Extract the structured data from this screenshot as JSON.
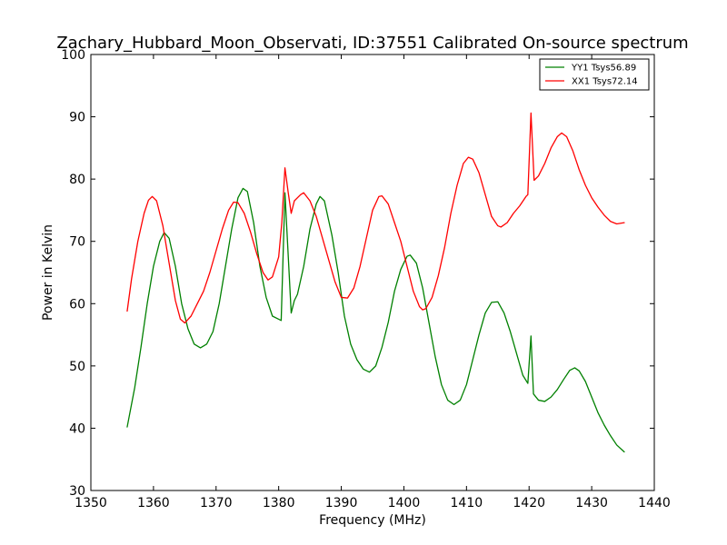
{
  "chart_data": {
    "type": "line",
    "title": "Zachary_Hubbard_Moon_Observati, ID:37551 Calibrated On-source spectrum",
    "xlabel": "Frequency (MHz)",
    "ylabel": "Power in Kelvin",
    "xlim": [
      1350,
      1440
    ],
    "ylim": [
      30,
      100
    ],
    "xticks": [
      1350,
      1360,
      1370,
      1380,
      1390,
      1400,
      1410,
      1420,
      1430,
      1440
    ],
    "yticks": [
      30,
      40,
      50,
      60,
      70,
      80,
      90,
      100
    ],
    "xtick_labels": [
      "1350",
      "1360",
      "1370",
      "1380",
      "1390",
      "1400",
      "1410",
      "1420",
      "1430",
      "1440"
    ],
    "ytick_labels": [
      "30",
      "40",
      "50",
      "60",
      "70",
      "80",
      "90",
      "100"
    ],
    "grid": false,
    "legend_position": "top-right",
    "series": [
      {
        "name": "YY1 Tsys56.89",
        "color": "#008000",
        "points": [
          [
            1355.8,
            40.2
          ],
          [
            1357.0,
            46.5
          ],
          [
            1358.0,
            53.0
          ],
          [
            1359.0,
            60.0
          ],
          [
            1360.0,
            66.0
          ],
          [
            1361.0,
            70.0
          ],
          [
            1361.7,
            71.4
          ],
          [
            1362.5,
            70.5
          ],
          [
            1363.5,
            66.0
          ],
          [
            1364.5,
            60.0
          ],
          [
            1365.5,
            56.0
          ],
          [
            1366.5,
            53.5
          ],
          [
            1367.5,
            52.9
          ],
          [
            1368.5,
            53.5
          ],
          [
            1369.5,
            55.5
          ],
          [
            1370.5,
            60.0
          ],
          [
            1371.5,
            66.0
          ],
          [
            1372.5,
            72.0
          ],
          [
            1373.5,
            77.0
          ],
          [
            1374.3,
            78.5
          ],
          [
            1375.0,
            78.0
          ],
          [
            1376.0,
            73.0
          ],
          [
            1377.0,
            66.0
          ],
          [
            1378.0,
            61.0
          ],
          [
            1379.0,
            58.0
          ],
          [
            1380.0,
            57.5
          ],
          [
            1380.4,
            57.3
          ],
          [
            1381.0,
            77.8
          ],
          [
            1382.0,
            58.5
          ],
          [
            1382.5,
            60.5
          ],
          [
            1383.0,
            61.5
          ],
          [
            1384.0,
            66.0
          ],
          [
            1385.0,
            72.0
          ],
          [
            1386.0,
            76.0
          ],
          [
            1386.6,
            77.2
          ],
          [
            1387.3,
            76.5
          ],
          [
            1388.5,
            71.0
          ],
          [
            1389.5,
            65.0
          ],
          [
            1390.5,
            58.0
          ],
          [
            1391.5,
            53.5
          ],
          [
            1392.5,
            51.0
          ],
          [
            1393.5,
            49.5
          ],
          [
            1394.5,
            49.0
          ],
          [
            1395.5,
            50.0
          ],
          [
            1396.5,
            53.0
          ],
          [
            1397.5,
            57.0
          ],
          [
            1398.5,
            62.0
          ],
          [
            1399.5,
            65.5
          ],
          [
            1400.5,
            67.6
          ],
          [
            1401.0,
            67.8
          ],
          [
            1402.0,
            66.5
          ],
          [
            1403.0,
            62.5
          ],
          [
            1404.0,
            57.0
          ],
          [
            1405.0,
            51.5
          ],
          [
            1406.0,
            47.0
          ],
          [
            1407.0,
            44.5
          ],
          [
            1408.0,
            43.8
          ],
          [
            1409.0,
            44.5
          ],
          [
            1410.0,
            47.0
          ],
          [
            1411.0,
            51.0
          ],
          [
            1412.0,
            55.0
          ],
          [
            1413.0,
            58.5
          ],
          [
            1414.0,
            60.2
          ],
          [
            1415.0,
            60.3
          ],
          [
            1416.0,
            58.5
          ],
          [
            1417.0,
            55.5
          ],
          [
            1418.0,
            52.0
          ],
          [
            1419.0,
            48.5
          ],
          [
            1419.8,
            47.2
          ],
          [
            1420.3,
            54.8
          ],
          [
            1420.7,
            45.5
          ],
          [
            1421.5,
            44.5
          ],
          [
            1422.5,
            44.3
          ],
          [
            1423.5,
            45.0
          ],
          [
            1424.5,
            46.2
          ],
          [
            1425.5,
            47.8
          ],
          [
            1426.5,
            49.3
          ],
          [
            1427.3,
            49.7
          ],
          [
            1428.0,
            49.2
          ],
          [
            1429.0,
            47.5
          ],
          [
            1430.0,
            45.0
          ],
          [
            1431.0,
            42.5
          ],
          [
            1432.0,
            40.5
          ],
          [
            1433.0,
            38.8
          ],
          [
            1434.0,
            37.3
          ],
          [
            1435.2,
            36.2
          ]
        ]
      },
      {
        "name": "XX1 Tsys72.14",
        "color": "#ff0000",
        "points": [
          [
            1355.8,
            58.8
          ],
          [
            1356.5,
            64.0
          ],
          [
            1357.5,
            70.0
          ],
          [
            1358.5,
            74.5
          ],
          [
            1359.2,
            76.6
          ],
          [
            1359.8,
            77.2
          ],
          [
            1360.5,
            76.5
          ],
          [
            1361.5,
            72.5
          ],
          [
            1362.5,
            66.5
          ],
          [
            1363.5,
            60.5
          ],
          [
            1364.3,
            57.5
          ],
          [
            1365.0,
            56.9
          ],
          [
            1366.0,
            58.0
          ],
          [
            1367.0,
            60.0
          ],
          [
            1368.0,
            62.0
          ],
          [
            1369.0,
            65.0
          ],
          [
            1370.0,
            68.5
          ],
          [
            1371.0,
            72.0
          ],
          [
            1372.0,
            75.0
          ],
          [
            1372.8,
            76.3
          ],
          [
            1373.5,
            76.2
          ],
          [
            1374.5,
            74.5
          ],
          [
            1375.5,
            71.5
          ],
          [
            1376.5,
            68.0
          ],
          [
            1377.5,
            65.0
          ],
          [
            1378.3,
            63.8
          ],
          [
            1379.0,
            64.3
          ],
          [
            1380.0,
            67.5
          ],
          [
            1380.5,
            73.0
          ],
          [
            1381.0,
            81.8
          ],
          [
            1381.5,
            78.0
          ],
          [
            1382.0,
            74.5
          ],
          [
            1382.5,
            76.5
          ],
          [
            1383.5,
            77.5
          ],
          [
            1384.0,
            77.8
          ],
          [
            1385.0,
            76.5
          ],
          [
            1386.0,
            74.0
          ],
          [
            1387.0,
            70.5
          ],
          [
            1388.0,
            67.0
          ],
          [
            1389.0,
            63.5
          ],
          [
            1390.0,
            61.0
          ],
          [
            1391.0,
            60.9
          ],
          [
            1392.0,
            62.5
          ],
          [
            1393.0,
            66.0
          ],
          [
            1394.0,
            70.5
          ],
          [
            1395.0,
            75.0
          ],
          [
            1396.0,
            77.2
          ],
          [
            1396.5,
            77.3
          ],
          [
            1397.5,
            76.0
          ],
          [
            1398.5,
            73.0
          ],
          [
            1399.5,
            70.0
          ],
          [
            1400.5,
            66.0
          ],
          [
            1401.5,
            62.0
          ],
          [
            1402.5,
            59.5
          ],
          [
            1403.0,
            59.0
          ],
          [
            1403.5,
            59.2
          ],
          [
            1404.5,
            61.0
          ],
          [
            1405.5,
            64.5
          ],
          [
            1406.5,
            69.0
          ],
          [
            1407.5,
            74.5
          ],
          [
            1408.5,
            79.0
          ],
          [
            1409.5,
            82.5
          ],
          [
            1410.3,
            83.5
          ],
          [
            1411.0,
            83.2
          ],
          [
            1412.0,
            81.0
          ],
          [
            1413.0,
            77.5
          ],
          [
            1414.0,
            74.0
          ],
          [
            1415.0,
            72.5
          ],
          [
            1415.5,
            72.3
          ],
          [
            1416.5,
            73.0
          ],
          [
            1417.5,
            74.5
          ],
          [
            1418.5,
            75.7
          ],
          [
            1419.5,
            77.2
          ],
          [
            1419.8,
            77.5
          ],
          [
            1420.3,
            90.6
          ],
          [
            1420.8,
            79.8
          ],
          [
            1421.5,
            80.5
          ],
          [
            1422.5,
            82.5
          ],
          [
            1423.5,
            85.0
          ],
          [
            1424.5,
            86.8
          ],
          [
            1425.2,
            87.4
          ],
          [
            1426.0,
            86.8
          ],
          [
            1427.0,
            84.5
          ],
          [
            1428.0,
            81.5
          ],
          [
            1429.0,
            79.0
          ],
          [
            1430.0,
            77.0
          ],
          [
            1431.0,
            75.5
          ],
          [
            1432.0,
            74.2
          ],
          [
            1433.0,
            73.2
          ],
          [
            1434.0,
            72.8
          ],
          [
            1435.2,
            73.0
          ]
        ]
      }
    ]
  }
}
